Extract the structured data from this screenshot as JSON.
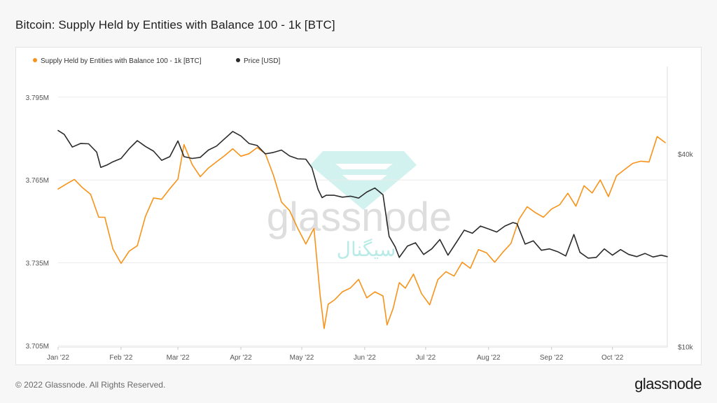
{
  "title": "Bitcoin: Supply Held by Entities with Balance 100 - 1k [BTC]",
  "footer": {
    "copyright": "© 2022 Glassnode. All Rights Reserved.",
    "brand": "glassnode"
  },
  "watermark": {
    "brand": "glassnode",
    "arabic": "سیگنال"
  },
  "colors": {
    "supply": "#f7931a",
    "price": "#2b2b2b",
    "grid": "#ececec",
    "axis_text": "#555555"
  },
  "chart_data": {
    "type": "line",
    "title": "Bitcoin: Supply Held by Entities with Balance 100 - 1k [BTC]",
    "x_ticks": [
      "Jan '22",
      "Feb '22",
      "Mar '22",
      "Apr '22",
      "May '22",
      "Jun '22",
      "Jul '22",
      "Aug '22",
      "Sep '22",
      "Oct '22"
    ],
    "x_tick_days": [
      0,
      31,
      59,
      90,
      120,
      151,
      181,
      212,
      243,
      273
    ],
    "x_range_days": [
      0,
      300
    ],
    "legend": {
      "placement": "top-left",
      "items": [
        {
          "label": "Supply Held by Entities with Balance 100 - 1k [BTC]",
          "color": "#f7931a"
        },
        {
          "label": "Price [USD]",
          "color": "#2b2b2b"
        }
      ]
    },
    "y_left": {
      "ticks": [
        "3.705M",
        "3.735M",
        "3.765M",
        "3.795M"
      ],
      "tick_values": [
        3.705,
        3.735,
        3.765,
        3.795
      ],
      "range": [
        3.7045,
        3.8061
      ],
      "unit": "M BTC"
    },
    "y_right": {
      "ticks": [
        "$10k",
        "$40k"
      ],
      "tick_values": [
        10000,
        40000
      ],
      "scale": "log",
      "range": [
        9970,
        75000
      ]
    },
    "grid": true,
    "series": [
      {
        "name": "Supply Held by Entities with Balance 100 - 1k [BTC]",
        "axis": "left",
        "color": "#f7931a",
        "x": [
          "2022-01-01",
          "2022-01-05",
          "2022-01-09",
          "2022-01-13",
          "2022-01-17",
          "2022-01-21",
          "2022-01-24",
          "2022-01-28",
          "2022-02-01",
          "2022-02-05",
          "2022-02-09",
          "2022-02-13",
          "2022-02-17",
          "2022-02-21",
          "2022-02-25",
          "2022-03-01",
          "2022-03-04",
          "2022-03-08",
          "2022-03-12",
          "2022-03-16",
          "2022-03-20",
          "2022-03-24",
          "2022-03-28",
          "2022-04-01",
          "2022-04-05",
          "2022-04-09",
          "2022-04-13",
          "2022-04-17",
          "2022-04-21",
          "2022-04-25",
          "2022-04-29",
          "2022-05-03",
          "2022-05-07",
          "2022-05-10",
          "2022-05-12",
          "2022-05-14",
          "2022-05-17",
          "2022-05-21",
          "2022-05-25",
          "2022-05-29",
          "2022-06-02",
          "2022-06-06",
          "2022-06-10",
          "2022-06-12",
          "2022-06-15",
          "2022-06-18",
          "2022-06-21",
          "2022-06-25",
          "2022-06-29",
          "2022-07-03",
          "2022-07-07",
          "2022-07-11",
          "2022-07-15",
          "2022-07-19",
          "2022-07-23",
          "2022-07-27",
          "2022-07-31",
          "2022-08-04",
          "2022-08-08",
          "2022-08-12",
          "2022-08-16",
          "2022-08-20",
          "2022-08-24",
          "2022-08-28",
          "2022-09-01",
          "2022-09-05",
          "2022-09-09",
          "2022-09-13",
          "2022-09-17",
          "2022-09-21",
          "2022-09-25",
          "2022-09-29",
          "2022-10-03",
          "2022-10-07",
          "2022-10-11",
          "2022-10-15",
          "2022-10-19",
          "2022-10-23",
          "2022-10-27"
        ],
        "values": [
          3.7617,
          3.7635,
          3.7652,
          3.7622,
          3.7598,
          3.7515,
          3.7515,
          3.74,
          3.7348,
          3.7392,
          3.7412,
          3.7518,
          3.7585,
          3.758,
          3.7618,
          3.7653,
          3.7778,
          3.7706,
          3.7662,
          3.7693,
          3.7716,
          3.7738,
          3.7763,
          3.7736,
          3.7745,
          3.7767,
          3.7746,
          3.7668,
          3.757,
          3.7539,
          3.7475,
          3.7418,
          3.7475,
          3.7235,
          3.7112,
          3.72,
          3.7215,
          3.7245,
          3.7259,
          3.729,
          3.7223,
          3.7245,
          3.723,
          3.7125,
          3.7185,
          3.7278,
          3.7258,
          3.7309,
          3.7238,
          3.7198,
          3.7289,
          3.7318,
          3.7302,
          3.7352,
          3.733,
          3.7398,
          3.7386,
          3.7352,
          3.7388,
          3.742,
          3.7508,
          3.7553,
          3.7532,
          3.7515,
          3.7545,
          3.756,
          3.7602,
          3.7555,
          3.7629,
          3.7603,
          3.765,
          3.759,
          3.7665,
          3.7688,
          3.771,
          3.7718,
          3.7715,
          3.7807,
          3.7785
        ]
      },
      {
        "name": "Price [USD]",
        "axis": "right",
        "color": "#2b2b2b",
        "x": [
          "2022-01-01",
          "2022-01-04",
          "2022-01-08",
          "2022-01-12",
          "2022-01-16",
          "2022-01-20",
          "2022-01-22",
          "2022-01-25",
          "2022-01-28",
          "2022-02-01",
          "2022-02-05",
          "2022-02-09",
          "2022-02-13",
          "2022-02-17",
          "2022-02-21",
          "2022-02-25",
          "2022-03-01",
          "2022-03-04",
          "2022-03-08",
          "2022-03-12",
          "2022-03-16",
          "2022-03-20",
          "2022-03-24",
          "2022-03-28",
          "2022-04-01",
          "2022-04-05",
          "2022-04-09",
          "2022-04-13",
          "2022-04-17",
          "2022-04-21",
          "2022-04-25",
          "2022-04-29",
          "2022-05-03",
          "2022-05-06",
          "2022-05-09",
          "2022-05-11",
          "2022-05-13",
          "2022-05-17",
          "2022-05-21",
          "2022-05-25",
          "2022-05-29",
          "2022-06-02",
          "2022-06-06",
          "2022-06-10",
          "2022-06-13",
          "2022-06-16",
          "2022-06-18",
          "2022-06-22",
          "2022-06-26",
          "2022-06-30",
          "2022-07-04",
          "2022-07-08",
          "2022-07-12",
          "2022-07-16",
          "2022-07-20",
          "2022-07-24",
          "2022-07-28",
          "2022-08-01",
          "2022-08-05",
          "2022-08-09",
          "2022-08-13",
          "2022-08-15",
          "2022-08-19",
          "2022-08-23",
          "2022-08-27",
          "2022-08-31",
          "2022-09-04",
          "2022-09-08",
          "2022-09-12",
          "2022-09-15",
          "2022-09-19",
          "2022-09-23",
          "2022-09-27",
          "2022-10-01",
          "2022-10-05",
          "2022-10-09",
          "2022-10-13",
          "2022-10-17",
          "2022-10-21",
          "2022-10-25",
          "2022-10-28"
        ],
        "values": [
          47300,
          46000,
          42000,
          43100,
          43000,
          40500,
          36300,
          36900,
          37800,
          38700,
          41500,
          44000,
          42200,
          40800,
          38200,
          39200,
          43900,
          39200,
          38700,
          39000,
          41100,
          42300,
          44600,
          47000,
          45500,
          43100,
          42500,
          40000,
          40400,
          41100,
          39400,
          38600,
          38500,
          36200,
          31000,
          29200,
          29700,
          29700,
          29300,
          29500,
          29100,
          30400,
          31300,
          29800,
          22100,
          20500,
          19000,
          20600,
          21100,
          19400,
          20200,
          21600,
          19300,
          21100,
          23100,
          22600,
          23800,
          23300,
          22800,
          23800,
          24400,
          24200,
          20900,
          21400,
          20000,
          20200,
          19800,
          19200,
          22400,
          19700,
          18900,
          19000,
          20200,
          19300,
          20100,
          19400,
          19100,
          19550,
          19050,
          19300,
          19100
        ]
      }
    ]
  }
}
